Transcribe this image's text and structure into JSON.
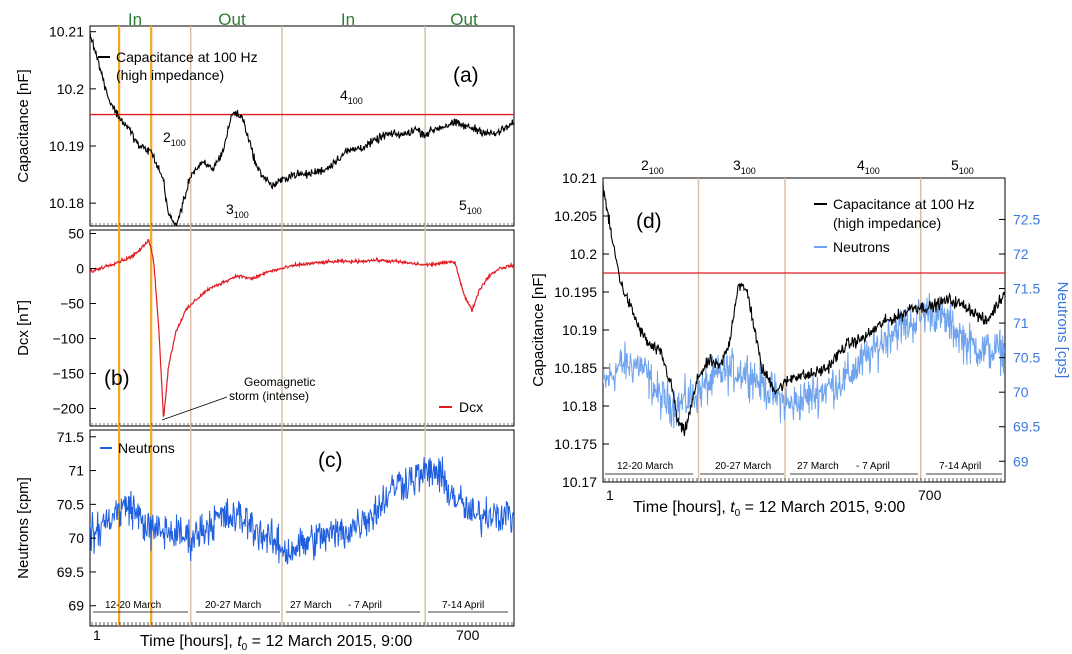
{
  "colors": {
    "capacitance": "#000000",
    "dcx": "#e11b22",
    "neutrons_left": "#1f5fe0",
    "neutrons_right": "#6fa3ee",
    "threshold_line": "#e11b22",
    "sector_line": "#d8c0a8",
    "orange_line": "#f5a623",
    "in_out_text": "#2e7d32",
    "right_axis": "#3a78e0"
  },
  "in_out_labels": [
    "In",
    "Out",
    "In",
    "Out"
  ],
  "period_labels": [
    "12-20 March",
    "20-27 March",
    "27 March",
    "- 7 April",
    "7-14 April"
  ],
  "left_panels": {
    "a": {
      "panel_label": "(a)",
      "ylabel": "Capacitance [nF]",
      "legend": {
        "line1": "Capacitance at 100 Hz",
        "line2": "(high impedance)"
      },
      "yticks": [
        "10.21",
        "10.2",
        "10.19",
        "10.18"
      ],
      "markers": [
        {
          "base": "2",
          "sub": "100"
        },
        {
          "base": "3",
          "sub": "100"
        },
        {
          "base": "4",
          "sub": "100"
        },
        {
          "base": "5",
          "sub": "100"
        }
      ]
    },
    "b": {
      "panel_label": "(b)",
      "ylabel": "Dcx [nT]",
      "legend": "Dcx",
      "annotation": {
        "line1": "Geomagnetic",
        "line2": "storm (intense)"
      },
      "yticks": [
        "50",
        "0",
        "−50",
        "−100",
        "−150",
        "−200"
      ]
    },
    "c": {
      "panel_label": "(c)",
      "ylabel": "Neutrons [cpm]",
      "legend": "Neutrons",
      "yticks": [
        "71.5",
        "71",
        "70.5",
        "70",
        "69.5",
        "69"
      ]
    },
    "xticks": [
      "1",
      "700"
    ],
    "xlabel": {
      "prefix": "Time [hours], ",
      "t": "t",
      "sub": "0",
      "suffix": " = 12 March 2015, 9:00"
    }
  },
  "right_panel": {
    "panel_label": "(d)",
    "ylabel_left": "Capacitance [nF]",
    "ylabel_right": "Neutrons [cps]",
    "legend": {
      "line1": "Capacitance at 100 Hz",
      "line2": "(high impedance)",
      "line3": "Neutrons"
    },
    "yticks_left": [
      "10.21",
      "10.205",
      "10.2",
      "10.195",
      "10.19",
      "10.185",
      "10.18",
      "10.175",
      "10.17"
    ],
    "yticks_right": [
      "72.5",
      "72",
      "71.5",
      "71",
      "70.5",
      "70",
      "69.5",
      "69"
    ],
    "top_markers": [
      {
        "base": "2",
        "sub": "100"
      },
      {
        "base": "3",
        "sub": "100"
      },
      {
        "base": "4",
        "sub": "100"
      },
      {
        "base": "5",
        "sub": "100"
      }
    ],
    "xticks": [
      "1",
      "700"
    ],
    "xlabel": {
      "prefix": "Time [hours], ",
      "t": "t",
      "sub": "0",
      "suffix": " = 12 March 2015, 9:00"
    }
  },
  "chart_data": [
    {
      "type": "line",
      "panel": "a",
      "x_range": [
        1,
        860
      ],
      "ylabel": "Capacitance [nF]",
      "ylim": [
        10.176,
        10.211
      ],
      "reference_line": 10.1955,
      "sector_boundaries_hours": [
        205,
        390,
        680
      ],
      "orange_lines_hours": [
        60,
        125
      ],
      "series": [
        {
          "name": "Capacitance at 100 Hz",
          "x": [
            1,
            20,
            40,
            60,
            80,
            100,
            125,
            150,
            160,
            175,
            190,
            205,
            230,
            250,
            270,
            290,
            310,
            340,
            370,
            390,
            410,
            440,
            480,
            520,
            560,
            600,
            640,
            660,
            680,
            700,
            740,
            780,
            820,
            860
          ],
          "y": [
            10.21,
            10.204,
            10.198,
            10.195,
            10.193,
            10.19,
            10.189,
            10.184,
            10.178,
            10.176,
            10.18,
            10.185,
            10.187,
            10.186,
            10.189,
            10.196,
            10.195,
            10.186,
            10.183,
            10.184,
            10.185,
            10.185,
            10.186,
            10.189,
            10.19,
            10.192,
            10.192,
            10.193,
            10.192,
            10.193,
            10.194,
            10.193,
            10.192,
            10.194
          ]
        }
      ]
    },
    {
      "type": "line",
      "panel": "b",
      "x_range": [
        1,
        860
      ],
      "ylabel": "Dcx [nT]",
      "ylim": [
        -225,
        55
      ],
      "series": [
        {
          "name": "Dcx",
          "x": [
            1,
            20,
            40,
            60,
            80,
            100,
            120,
            125,
            130,
            140,
            150,
            160,
            175,
            195,
            215,
            240,
            270,
            300,
            330,
            360,
            390,
            420,
            460,
            500,
            540,
            580,
            620,
            680,
            720,
            740,
            760,
            775,
            790,
            810,
            830,
            860
          ],
          "y": [
            -5,
            0,
            5,
            10,
            15,
            25,
            40,
            30,
            10,
            -80,
            -215,
            -140,
            -90,
            -60,
            -45,
            -30,
            -20,
            -10,
            -15,
            -5,
            0,
            5,
            8,
            10,
            10,
            12,
            10,
            5,
            8,
            10,
            -40,
            -60,
            -30,
            -10,
            0,
            5
          ]
        }
      ]
    },
    {
      "type": "line",
      "panel": "c",
      "x_range": [
        1,
        860
      ],
      "ylabel": "Neutrons [cpm]",
      "ylim": [
        68.7,
        71.6
      ],
      "series": [
        {
          "name": "Neutrons",
          "x": [
            1,
            40,
            80,
            125,
            160,
            205,
            260,
            310,
            360,
            400,
            460,
            520,
            580,
            620,
            660,
            700,
            740,
            780,
            820,
            860
          ],
          "y": [
            70.0,
            70.3,
            70.5,
            70.1,
            70.1,
            70.0,
            70.3,
            70.3,
            70.0,
            69.8,
            70.0,
            70.1,
            70.4,
            70.8,
            70.9,
            71.0,
            70.6,
            70.3,
            70.4,
            70.3
          ]
        }
      ]
    },
    {
      "type": "line",
      "panel": "d",
      "x_range": [
        1,
        860
      ],
      "ylim_left": [
        10.17,
        10.21
      ],
      "ylim_right": [
        68.7,
        73.1
      ],
      "reference_line": 10.1975,
      "sector_boundaries_hours": [
        205,
        390,
        680
      ],
      "series": [
        {
          "name": "Capacitance at 100 Hz",
          "axis": "left",
          "x": [
            1,
            20,
            40,
            60,
            80,
            100,
            125,
            150,
            160,
            175,
            190,
            205,
            230,
            250,
            270,
            290,
            310,
            340,
            370,
            390,
            410,
            440,
            480,
            520,
            560,
            600,
            640,
            660,
            680,
            700,
            740,
            780,
            820,
            860
          ],
          "y": [
            10.209,
            10.202,
            10.196,
            10.193,
            10.19,
            10.188,
            10.187,
            10.182,
            10.178,
            10.1765,
            10.18,
            10.184,
            10.186,
            10.185,
            10.188,
            10.196,
            10.195,
            10.185,
            10.182,
            10.183,
            10.184,
            10.184,
            10.185,
            10.188,
            10.189,
            10.191,
            10.192,
            10.193,
            10.193,
            10.193,
            10.194,
            10.193,
            10.191,
            10.195
          ]
        },
        {
          "name": "Neutrons",
          "axis": "right",
          "x": [
            1,
            40,
            80,
            125,
            160,
            205,
            260,
            310,
            360,
            400,
            460,
            520,
            580,
            620,
            660,
            700,
            740,
            780,
            820,
            860
          ],
          "y": [
            70.1,
            70.4,
            70.4,
            69.9,
            69.8,
            70.0,
            70.3,
            70.3,
            70.0,
            69.8,
            70.0,
            70.2,
            70.6,
            70.9,
            71.0,
            71.2,
            71.0,
            70.7,
            70.6,
            70.6
          ]
        }
      ]
    }
  ]
}
